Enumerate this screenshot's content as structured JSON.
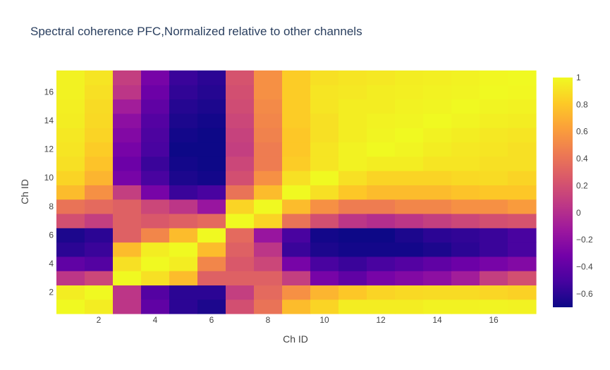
{
  "chart_data": {
    "type": "heatmap",
    "title": "Spectral coherence PFC,Normalized relative to other channels",
    "xlabel": "Ch ID",
    "ylabel": "Ch ID",
    "x": [
      1,
      2,
      3,
      4,
      5,
      6,
      7,
      8,
      9,
      10,
      11,
      12,
      13,
      14,
      15,
      16,
      17
    ],
    "y": [
      1,
      2,
      3,
      4,
      5,
      6,
      7,
      8,
      9,
      10,
      11,
      12,
      13,
      14,
      15,
      16,
      17
    ],
    "xlim": [
      0.5,
      17.5
    ],
    "ylim": [
      0.5,
      17.5
    ],
    "x_ticks": [
      2,
      4,
      6,
      8,
      10,
      12,
      14,
      16
    ],
    "y_ticks": [
      2,
      4,
      6,
      8,
      10,
      12,
      14,
      16
    ],
    "z": [
      [
        1.0,
        0.95,
        0.05,
        -0.4,
        -0.6,
        -0.65,
        0.2,
        0.4,
        0.75,
        0.85,
        0.95,
        0.95,
        0.95,
        0.97,
        0.97,
        0.98,
        0.97
      ],
      [
        0.95,
        1.0,
        0.05,
        -0.45,
        -0.6,
        -0.6,
        0.1,
        0.35,
        0.55,
        0.72,
        0.8,
        0.85,
        0.87,
        0.88,
        0.88,
        0.86,
        0.84
      ],
      [
        0.05,
        0.15,
        1.0,
        0.9,
        0.75,
        0.3,
        0.3,
        0.3,
        0.1,
        -0.3,
        -0.4,
        -0.3,
        -0.25,
        -0.2,
        -0.1,
        0.1,
        0.2
      ],
      [
        -0.4,
        -0.45,
        0.9,
        1.0,
        0.95,
        0.5,
        0.25,
        0.15,
        -0.3,
        -0.5,
        -0.55,
        -0.5,
        -0.45,
        -0.4,
        -0.35,
        -0.3,
        -0.25
      ],
      [
        -0.6,
        -0.55,
        0.75,
        0.95,
        1.0,
        0.75,
        0.3,
        0.05,
        -0.55,
        -0.65,
        -0.68,
        -0.68,
        -0.68,
        -0.65,
        -0.6,
        -0.55,
        -0.5
      ],
      [
        -0.65,
        -0.6,
        0.3,
        0.5,
        0.75,
        1.0,
        0.35,
        -0.15,
        -0.5,
        -0.68,
        -0.7,
        -0.7,
        -0.65,
        -0.6,
        -0.58,
        -0.55,
        -0.5
      ],
      [
        0.2,
        0.1,
        0.3,
        0.25,
        0.3,
        0.35,
        1.0,
        0.85,
        0.4,
        0.2,
        0.05,
        0.0,
        0.05,
        0.1,
        0.15,
        0.2,
        0.22
      ],
      [
        0.4,
        0.35,
        0.3,
        0.15,
        0.05,
        -0.15,
        0.85,
        1.0,
        0.75,
        0.55,
        0.45,
        0.45,
        0.5,
        0.5,
        0.55,
        0.55,
        0.6
      ],
      [
        0.75,
        0.55,
        0.1,
        -0.3,
        -0.55,
        -0.5,
        0.4,
        0.75,
        1.0,
        0.9,
        0.8,
        0.75,
        0.75,
        0.75,
        0.78,
        0.8,
        0.8
      ],
      [
        0.85,
        0.72,
        -0.3,
        -0.5,
        -0.65,
        -0.68,
        0.2,
        0.55,
        0.9,
        1.0,
        0.9,
        0.85,
        0.85,
        0.85,
        0.87,
        0.88,
        0.85
      ],
      [
        0.9,
        0.78,
        -0.35,
        -0.55,
        -0.68,
        -0.7,
        0.15,
        0.45,
        0.82,
        0.92,
        0.97,
        0.95,
        0.95,
        0.92,
        0.92,
        0.9,
        0.9
      ],
      [
        0.92,
        0.82,
        -0.3,
        -0.5,
        -0.7,
        -0.72,
        0.1,
        0.45,
        0.8,
        0.92,
        0.97,
        1.0,
        0.98,
        0.95,
        0.93,
        0.92,
        0.9
      ],
      [
        0.93,
        0.85,
        -0.25,
        -0.48,
        -0.68,
        -0.72,
        0.12,
        0.48,
        0.8,
        0.9,
        0.95,
        0.98,
        1.0,
        0.97,
        0.95,
        0.93,
        0.92
      ],
      [
        0.95,
        0.87,
        -0.2,
        -0.45,
        -0.65,
        -0.68,
        0.15,
        0.5,
        0.82,
        0.9,
        0.95,
        0.97,
        0.98,
        1.0,
        0.98,
        0.96,
        0.95
      ],
      [
        0.96,
        0.88,
        -0.1,
        -0.4,
        -0.62,
        -0.65,
        0.18,
        0.52,
        0.82,
        0.92,
        0.95,
        0.95,
        0.97,
        0.98,
        1.0,
        0.98,
        0.97
      ],
      [
        0.97,
        0.9,
        0.05,
        -0.35,
        -0.58,
        -0.62,
        0.2,
        0.55,
        0.82,
        0.92,
        0.93,
        0.95,
        0.96,
        0.97,
        0.98,
        1.0,
        0.99
      ],
      [
        0.97,
        0.92,
        0.1,
        -0.3,
        -0.55,
        -0.6,
        0.22,
        0.55,
        0.82,
        0.9,
        0.92,
        0.93,
        0.95,
        0.96,
        0.97,
        0.99,
        1.0
      ]
    ],
    "colorbar": {
      "zmin": -0.7,
      "zmax": 1.0,
      "ticks": [
        1,
        0.8,
        0.6,
        0.4,
        0.2,
        0,
        -0.2,
        -0.4,
        -0.6
      ],
      "tick_labels": [
        "1",
        "0.8",
        "0.6",
        "0.4",
        "0.2",
        "0",
        "−0.2",
        "−0.4",
        "−0.6"
      ]
    },
    "colorscale": [
      "#0d0887",
      "#46039f",
      "#7201a8",
      "#9c179e",
      "#bd3786",
      "#d8576b",
      "#ed7953",
      "#fb9f3a",
      "#fdca26",
      "#f0f921"
    ]
  }
}
